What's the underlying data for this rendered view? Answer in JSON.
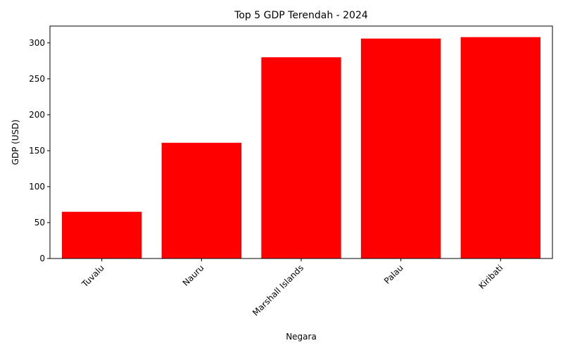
{
  "chart_data": {
    "type": "bar",
    "title": "Top 5 GDP Terendah - 2024",
    "xlabel": "Negara",
    "ylabel": "GDP (USD)",
    "categories": [
      "Tuvalu",
      "Nauru",
      "Marshall Islands",
      "Palau",
      "Kiribati"
    ],
    "values": [
      65,
      161,
      280,
      306,
      308
    ],
    "ylim": [
      0,
      323.4
    ],
    "yticks": [
      0,
      50,
      100,
      150,
      200,
      250,
      300
    ],
    "bar_color": "#ff0000",
    "grid": false,
    "legend": "none",
    "xtick_rotation": 45
  }
}
